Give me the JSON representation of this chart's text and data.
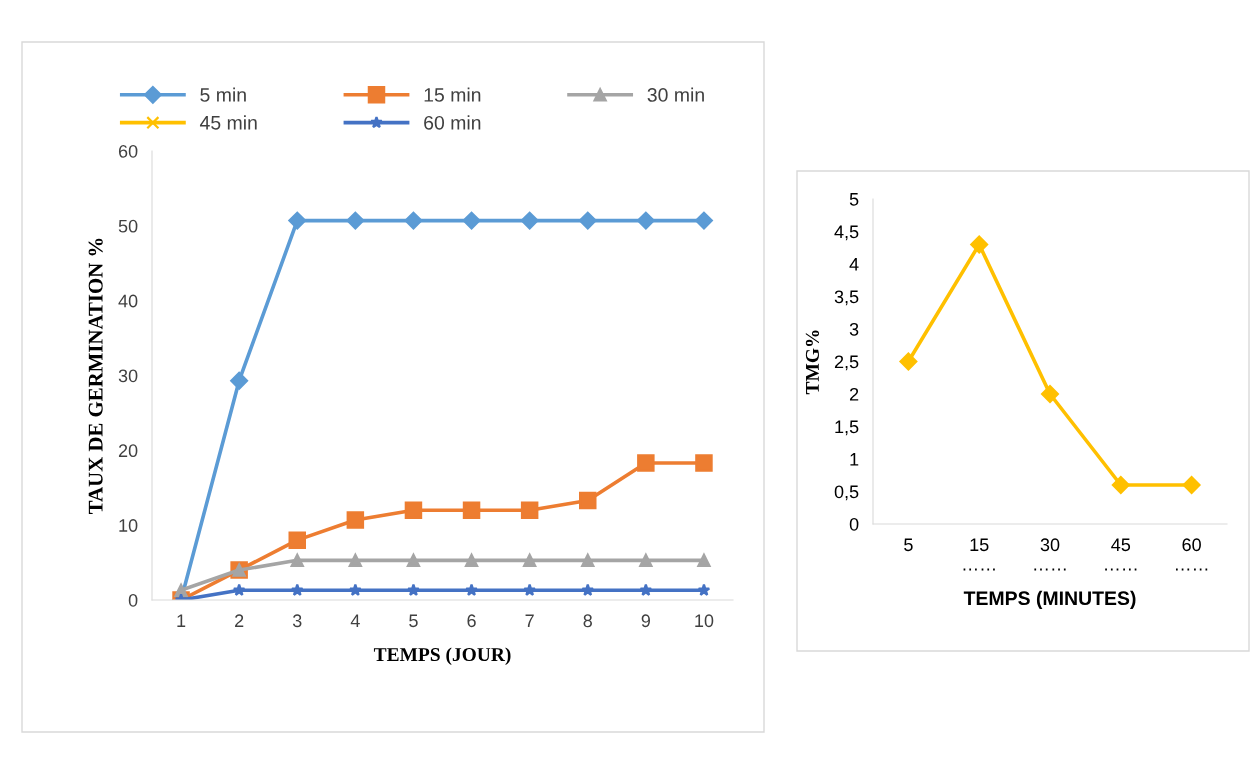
{
  "chart_data": [
    {
      "type": "line",
      "categories": [
        "1",
        "2",
        "3",
        "4",
        "5",
        "6",
        "7",
        "8",
        "9",
        "10"
      ],
      "xlabel": "TEMPS (JOUR)",
      "ylabel": "TAUX DE GERMINATION %",
      "ylim": [
        0,
        60
      ],
      "yticks": [
        0,
        10,
        20,
        30,
        40,
        50,
        60
      ],
      "grid": false,
      "legend": "top",
      "series": [
        {
          "name": "5 min",
          "color": "#5b9bd5",
          "marker": "diamond",
          "values": [
            0,
            29.3,
            50.7,
            50.7,
            50.7,
            50.7,
            50.7,
            50.7,
            50.7,
            50.7
          ]
        },
        {
          "name": "15 min",
          "color": "#ed7d31",
          "marker": "square",
          "values": [
            0,
            4,
            8,
            10.7,
            12,
            12,
            12,
            13.3,
            18.3,
            18.3
          ]
        },
        {
          "name": "30 min",
          "color": "#a5a5a5",
          "marker": "triangle",
          "values": [
            1.3,
            4,
            5.3,
            5.3,
            5.3,
            5.3,
            5.3,
            5.3,
            5.3,
            5.3
          ]
        },
        {
          "name": "45 min",
          "color": "#ffc000",
          "marker": "cross",
          "values": [
            null,
            null,
            null,
            null,
            null,
            null,
            null,
            null,
            null,
            null
          ]
        },
        {
          "name": "60 min",
          "color": "#4472c4",
          "marker": "star",
          "values": [
            0,
            1.3,
            1.3,
            1.3,
            1.3,
            1.3,
            1.3,
            1.3,
            1.3,
            1.3
          ]
        }
      ]
    },
    {
      "type": "line",
      "categories": [
        "5",
        "15\n……",
        "30\n……",
        "45\n……",
        "60\n……"
      ],
      "xlabel": "TEMPS (MINUTES)",
      "ylabel": "TMG%",
      "ylim": [
        0,
        5
      ],
      "yticks": [
        0,
        {
          "value": 0.5,
          "label": "0,5"
        },
        1,
        {
          "value": 1.5,
          "label": "1,5"
        },
        2,
        {
          "value": 2.5,
          "label": "2,5"
        },
        3,
        {
          "value": 3.5,
          "label": "3,5"
        },
        4,
        {
          "value": 4.5,
          "label": "4,5"
        },
        5
      ],
      "grid": false,
      "legend": false,
      "series": [
        {
          "color": "#ffc000",
          "marker": "diamond",
          "values": [
            2.5,
            4.3,
            2,
            0.6,
            0.6
          ]
        }
      ]
    }
  ]
}
